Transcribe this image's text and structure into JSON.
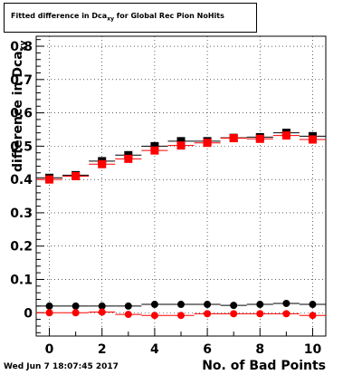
{
  "title": "Fitted difference in Dca",
  "title_sub": "xy",
  "title_rest": " for Global Rec Pion NoHits",
  "ylabel": "difference in Dca",
  "ylabel_sub": "xy",
  "xlabel": "No. of Bad Points",
  "timestamp": "Wed Jun  7 18:07:45 2017",
  "chart_data": {
    "type": "scatter",
    "title": "Fitted difference in Dca_xy for Global Rec Pion NoHits",
    "xlabel": "No. of Bad Points",
    "ylabel": "difference in Dca_xy",
    "xlim": [
      -0.5,
      10.5
    ],
    "ylim": [
      -0.07,
      0.83
    ],
    "xticks": [
      "0",
      "2",
      "4",
      "6",
      "8",
      "10"
    ],
    "yticks": [
      "0",
      "0.1",
      "0.2",
      "0.3",
      "0.4",
      "0.5",
      "0.6",
      "0.7",
      "0.8"
    ],
    "grid": true,
    "series": [
      {
        "marker": "square",
        "color": "#000000",
        "x": [
          0,
          1,
          2,
          3,
          4,
          5,
          6,
          7,
          8,
          9,
          10
        ],
        "y": [
          0.405,
          0.413,
          0.455,
          0.473,
          0.5,
          0.515,
          0.515,
          0.525,
          0.527,
          0.54,
          0.53
        ]
      },
      {
        "marker": "square",
        "color": "#ff0000",
        "x": [
          0,
          1,
          2,
          3,
          4,
          5,
          6,
          7,
          8,
          9,
          10
        ],
        "y": [
          0.4,
          0.41,
          0.446,
          0.462,
          0.487,
          0.502,
          0.51,
          0.524,
          0.522,
          0.532,
          0.52
        ]
      },
      {
        "marker": "circle",
        "color": "#000000",
        "x": [
          0,
          1,
          2,
          3,
          4,
          5,
          6,
          7,
          8,
          9,
          10
        ],
        "y": [
          0.02,
          0.02,
          0.02,
          0.02,
          0.025,
          0.025,
          0.025,
          0.022,
          0.025,
          0.028,
          0.025
        ]
      },
      {
        "marker": "circle",
        "color": "#ff0000",
        "x": [
          0,
          1,
          2,
          3,
          4,
          5,
          6,
          7,
          8,
          9,
          10
        ],
        "y": [
          0.0,
          0.0,
          0.002,
          -0.005,
          -0.008,
          -0.008,
          -0.003,
          -0.003,
          -0.003,
          -0.003,
          -0.008
        ]
      }
    ]
  }
}
